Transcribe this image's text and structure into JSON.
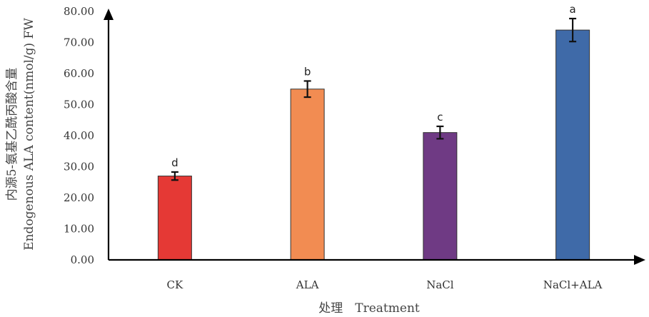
{
  "chart_data": {
    "type": "bar",
    "categories": [
      "CK",
      "ALA",
      "NaCl",
      "NaCl+ALA"
    ],
    "values": [
      27.0,
      55.0,
      41.0,
      74.0
    ],
    "errors": [
      1.3,
      2.6,
      2.0,
      3.7
    ],
    "significance": [
      "d",
      "b",
      "c",
      "a"
    ],
    "colors": [
      "#e53935",
      "#f28c52",
      "#6f3a84",
      "#3f6aa8"
    ],
    "xlabel": "处理　Treatment",
    "ylabel_line1": "内源5-氨基乙酰丙酸含量",
    "ylabel_line2": "Endogenous ALA content(nmol/g) FW",
    "ylim": [
      0,
      80
    ],
    "yticks": [
      "0.00",
      "10.00",
      "20.00",
      "30.00",
      "40.00",
      "50.00",
      "60.00",
      "70.00",
      "80.00"
    ],
    "grid": false
  }
}
